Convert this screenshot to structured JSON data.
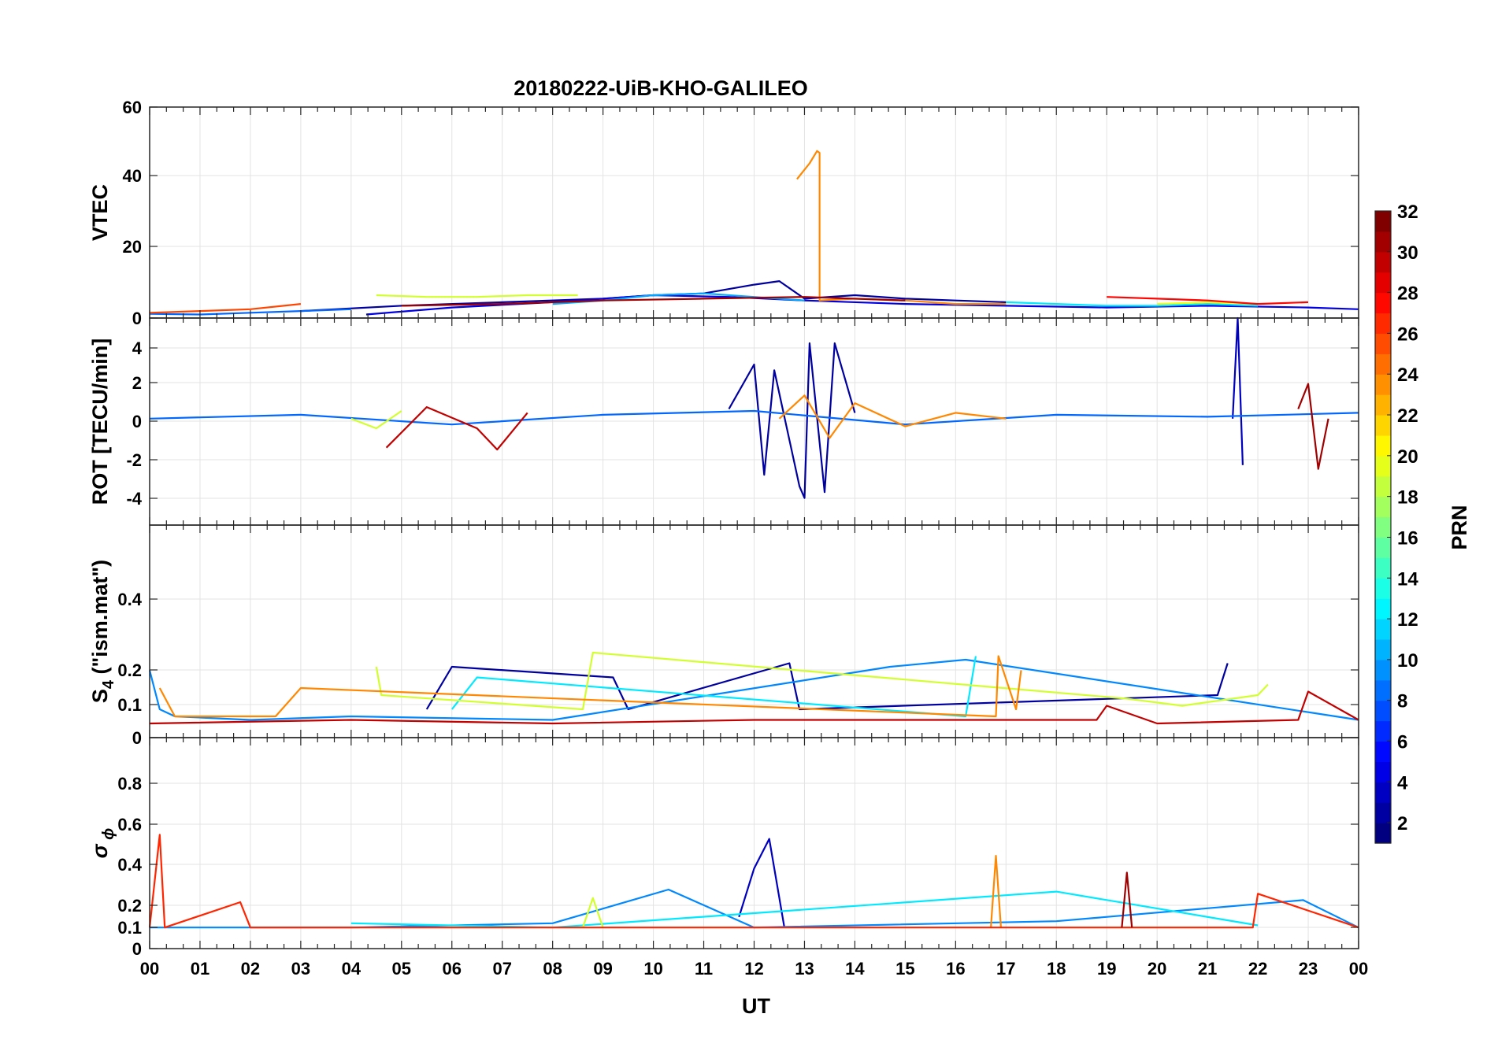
{
  "chart_data": {
    "title": "20180222-UiB-KHO-GALILEO",
    "type": "line",
    "xlabel": "UT",
    "x_ticks": [
      "00",
      "01",
      "02",
      "03",
      "04",
      "05",
      "06",
      "07",
      "08",
      "09",
      "10",
      "11",
      "12",
      "13",
      "14",
      "15",
      "16",
      "17",
      "18",
      "19",
      "20",
      "21",
      "22",
      "23",
      "00"
    ],
    "xlim": [
      0,
      24
    ],
    "grid": true,
    "colorbar": {
      "label": "PRN",
      "range": [
        1,
        32
      ],
      "ticks": [
        "32",
        "30",
        "28",
        "26",
        "24",
        "22",
        "20",
        "18",
        "16",
        "14",
        "12",
        "10",
        "8",
        "6",
        "4",
        "2"
      ],
      "colormap": "jet"
    },
    "panels": [
      {
        "ylabel": "VTEC",
        "ylim": [
          0,
          60
        ],
        "y_ticks": [
          "60",
          "40",
          "20",
          "0"
        ],
        "series": [
          {
            "prn": 2,
            "x": [
              3.0,
              5.0,
              7.0,
              9.0,
              10.0,
              11.0,
              12.0,
              12.5,
              13.0,
              14.0,
              15.0,
              16.0,
              17.0
            ],
            "y": [
              2.0,
              3.5,
              4.5,
              5.5,
              6.5,
              7.0,
              9.5,
              10.5,
              5.5,
              6.5,
              5.5,
              5.0,
              4.5
            ]
          },
          {
            "prn": 4,
            "x": [
              4.3,
              6.0,
              8.0,
              10.0,
              11.5,
              13.0,
              15.0,
              17.0,
              19.0,
              21.0,
              23.0,
              24.0
            ],
            "y": [
              1.0,
              3.0,
              4.5,
              6.5,
              6.0,
              5.0,
              4.0,
              3.5,
              3.0,
              3.5,
              3.0,
              2.5
            ]
          },
          {
            "prn": 8,
            "x": [
              0.0,
              1.0,
              2.0,
              3.0,
              4.0
            ],
            "y": [
              1.2,
              1.0,
              1.5,
              2.0,
              2.5
            ]
          },
          {
            "prn": 10,
            "x": [
              8.0,
              9.0,
              10.0,
              11.0,
              12.0,
              13.0
            ],
            "y": [
              4.0,
              5.0,
              6.5,
              7.0,
              6.0,
              5.0
            ]
          },
          {
            "prn": 12,
            "x": [
              17.0,
              18.0,
              19.0,
              20.0,
              21.0,
              22.0
            ],
            "y": [
              4.5,
              4.0,
              3.5,
              3.5,
              4.0,
              3.5
            ]
          },
          {
            "prn": 19,
            "x": [
              4.5,
              5.5,
              6.5,
              7.5,
              8.5
            ],
            "y": [
              6.5,
              6.0,
              6.0,
              6.5,
              6.5
            ]
          },
          {
            "prn": 20,
            "x": [
              20.0,
              21.0,
              22.0
            ],
            "y": [
              4.0,
              4.5,
              4.0
            ]
          },
          {
            "prn": 24,
            "x": [
              12.85,
              13.1,
              13.25,
              13.3,
              13.3,
              14.0,
              15.0,
              16.0,
              17.0
            ],
            "y": [
              39.5,
              44.0,
              47.5,
              47.0,
              5.0,
              5.5,
              5.0,
              4.0,
              4.0
            ]
          },
          {
            "prn": 26,
            "x": [
              0.0,
              1.0,
              2.0,
              3.0
            ],
            "y": [
              1.5,
              2.0,
              2.5,
              4.0
            ]
          },
          {
            "prn": 28,
            "x": [
              19.0,
              20.0,
              21.0,
              22.0,
              23.0
            ],
            "y": [
              6.0,
              5.5,
              5.0,
              4.0,
              4.5
            ]
          },
          {
            "prn": 31,
            "x": [
              5.0,
              7.0,
              9.0,
              11.0,
              13.0,
              15.0
            ],
            "y": [
              3.5,
              4.0,
              5.0,
              5.5,
              6.0,
              5.0
            ]
          }
        ]
      },
      {
        "ylabel": "ROT [TECU/min]",
        "ylim": [
          -5.5,
          5.2
        ],
        "y_ticks": [
          "4",
          "2",
          "0",
          "-2",
          "-4"
        ],
        "series": [
          {
            "prn": 2,
            "x": [
              11.5,
              12.0,
              12.2,
              12.4,
              12.9,
              13.0,
              13.1,
              13.4,
              13.6,
              14.0
            ],
            "y": [
              0.5,
              2.8,
              -2.9,
              2.5,
              -3.5,
              -4.1,
              3.9,
              -3.8,
              3.9,
              0.3
            ]
          },
          {
            "prn": 3,
            "x": [
              21.5,
              21.6,
              21.7
            ],
            "y": [
              0.0,
              5.2,
              -2.4
            ]
          },
          {
            "prn": 8,
            "x": [
              0.0,
              3.0,
              6.0,
              9.0,
              12.0,
              15.0,
              18.0,
              21.0,
              24.0
            ],
            "y": [
              0.0,
              0.2,
              -0.3,
              0.2,
              0.4,
              -0.3,
              0.2,
              0.1,
              0.3
            ]
          },
          {
            "prn": 19,
            "x": [
              4.0,
              4.5,
              5.0
            ],
            "y": [
              0.0,
              -0.5,
              0.4
            ]
          },
          {
            "prn": 24,
            "x": [
              12.5,
              13.0,
              13.5,
              14.0,
              15.0,
              16.0,
              17.0
            ],
            "y": [
              0.0,
              1.2,
              -1.0,
              0.8,
              -0.4,
              0.3,
              0.0
            ]
          },
          {
            "prn": 30,
            "x": [
              4.7,
              5.5,
              6.5,
              6.9,
              7.5
            ],
            "y": [
              -1.5,
              0.6,
              -0.5,
              -1.6,
              0.3
            ]
          },
          {
            "prn": 31,
            "x": [
              22.8,
              23.0,
              23.2,
              23.4
            ],
            "y": [
              0.5,
              1.8,
              -2.6,
              0.0
            ]
          }
        ]
      },
      {
        "ylabel": "S4 (\"ism.mat\")",
        "ylabel_parts": [
          "S",
          "4",
          " (\"ism.mat\")"
        ],
        "ylim": [
          0,
          0.6
        ],
        "y_ticks": [
          "0.4",
          "0.2",
          "0.1",
          "0"
        ],
        "series": [
          {
            "prn": 2,
            "x": [
              5.5,
              6.0,
              9.2,
              9.5,
              12.7,
              12.9,
              21.2,
              21.4
            ],
            "y": [
              0.08,
              0.2,
              0.17,
              0.08,
              0.21,
              0.08,
              0.12,
              0.21
            ]
          },
          {
            "prn": 9,
            "x": [
              0.0,
              0.2,
              0.5,
              2.0,
              4.0,
              8.0,
              14.7,
              16.2,
              24.0
            ],
            "y": [
              0.19,
              0.08,
              0.06,
              0.05,
              0.06,
              0.05,
              0.2,
              0.22,
              0.05
            ]
          },
          {
            "prn": 12,
            "x": [
              6.0,
              6.5,
              16.2,
              16.4
            ],
            "y": [
              0.08,
              0.17,
              0.06,
              0.23
            ]
          },
          {
            "prn": 19,
            "x": [
              4.5,
              4.6,
              8.6,
              8.8,
              19.4,
              20.5,
              22.0,
              22.2
            ],
            "y": [
              0.2,
              0.12,
              0.08,
              0.24,
              0.11,
              0.09,
              0.12,
              0.15
            ]
          },
          {
            "prn": 24,
            "x": [
              0.2,
              0.5,
              2.5,
              3.0,
              16.8,
              16.85,
              17.2,
              17.3
            ],
            "y": [
              0.14,
              0.06,
              0.06,
              0.14,
              0.06,
              0.23,
              0.08,
              0.19
            ]
          },
          {
            "prn": 30,
            "x": [
              0.0,
              4.0,
              8.0,
              12.0,
              18.8,
              19.0,
              20.0,
              22.8,
              23.0,
              24.0
            ],
            "y": [
              0.04,
              0.05,
              0.04,
              0.05,
              0.05,
              0.09,
              0.04,
              0.05,
              0.13,
              0.05
            ]
          }
        ]
      },
      {
        "ylabel": "σ ϕ",
        "ylabel_parts": [
          "σ",
          " ϕ"
        ],
        "ylim": [
          0,
          1.0
        ],
        "y_ticks": [
          "0.8",
          "0.6",
          "0.4",
          "0.2",
          "0.1",
          "0"
        ],
        "series": [
          {
            "prn": 3,
            "x": [
              11.7,
              12.0,
              12.3,
              12.6
            ],
            "y": [
              0.15,
              0.38,
              0.52,
              0.1
            ]
          },
          {
            "prn": 9,
            "x": [
              0.0,
              4.0,
              8.0,
              10.3,
              12.0,
              18.0,
              22.9,
              24.0
            ],
            "y": [
              0.1,
              0.1,
              0.12,
              0.28,
              0.1,
              0.13,
              0.23,
              0.1
            ]
          },
          {
            "prn": 12,
            "x": [
              4.0,
              8.0,
              18.0,
              22.0
            ],
            "y": [
              0.12,
              0.1,
              0.27,
              0.11
            ]
          },
          {
            "prn": 19,
            "x": [
              8.6,
              8.8,
              9.0
            ],
            "y": [
              0.1,
              0.24,
              0.1
            ]
          },
          {
            "prn": 24,
            "x": [
              16.7,
              16.8,
              16.9
            ],
            "y": [
              0.1,
              0.44,
              0.1
            ]
          },
          {
            "prn": 27,
            "x": [
              0.0,
              0.2,
              0.3,
              1.8,
              2.0,
              21.9,
              22.0,
              24.0
            ],
            "y": [
              0.1,
              0.54,
              0.1,
              0.22,
              0.1,
              0.1,
              0.26,
              0.1
            ]
          },
          {
            "prn": 31,
            "x": [
              19.3,
              19.4,
              19.5
            ],
            "y": [
              0.1,
              0.36,
              0.1
            ]
          }
        ]
      }
    ]
  }
}
